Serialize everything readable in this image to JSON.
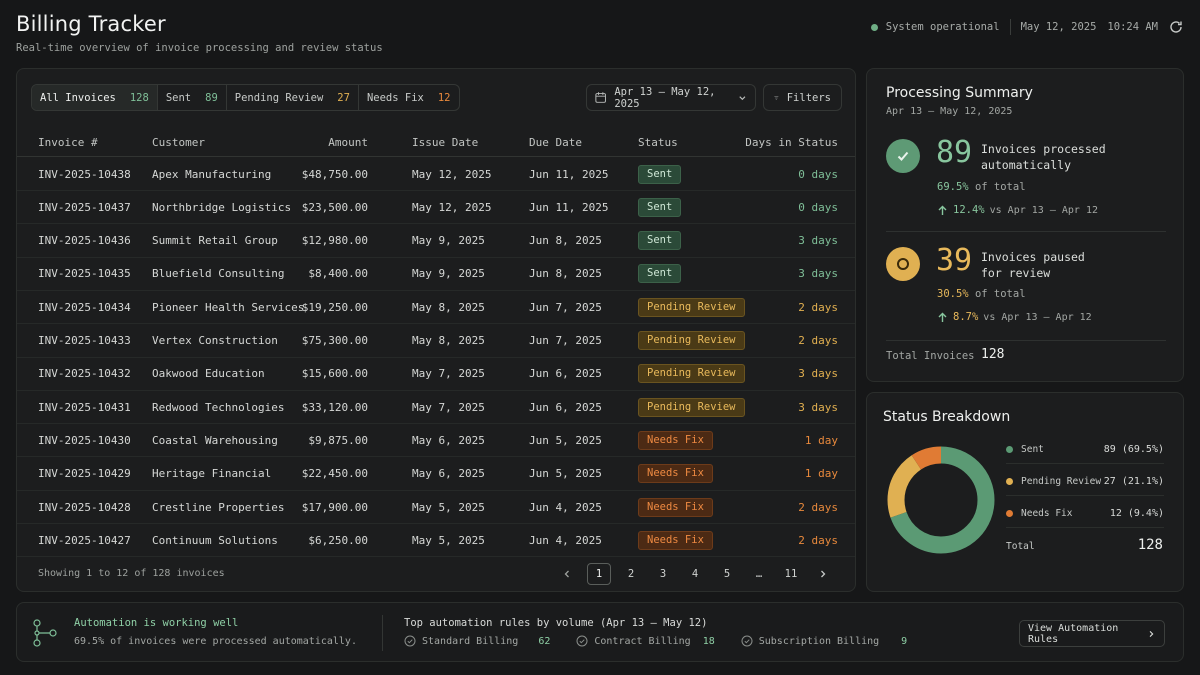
{
  "header": {
    "title": "Billing Tracker",
    "subtitle": "Real-time overview of invoice processing and review status",
    "system_status": "System operational",
    "date": "May 12, 2025",
    "time": "10:24 AM"
  },
  "colors": {
    "sent": "#5b9a74",
    "pending": "#e0b052",
    "fix": "#e07b34",
    "panel": "#1c1d1e",
    "background": "#161718"
  },
  "tabs": [
    {
      "label": "All Invoices",
      "count": "128"
    },
    {
      "label": "Sent",
      "count": "89"
    },
    {
      "label": "Pending Review",
      "count": "27"
    },
    {
      "label": "Needs Fix",
      "count": "12"
    }
  ],
  "toolbar": {
    "date_range": "Apr 13 – May 12, 2025",
    "filters_label": "Filters"
  },
  "table": {
    "columns": [
      "Invoice #",
      "Customer",
      "Amount",
      "Issue Date",
      "Due Date",
      "Status",
      "Days in Status"
    ],
    "rows": [
      {
        "invoice": "INV-2025-10438",
        "customer": "Apex Manufacturing",
        "amount": "$48,750.00",
        "issue": "May 12, 2025",
        "due": "Jun 11, 2025",
        "status": "Sent",
        "kind": "sent",
        "days": "0 days"
      },
      {
        "invoice": "INV-2025-10437",
        "customer": "Northbridge Logistics",
        "amount": "$23,500.00",
        "issue": "May 12, 2025",
        "due": "Jun 11, 2025",
        "status": "Sent",
        "kind": "sent",
        "days": "0 days"
      },
      {
        "invoice": "INV-2025-10436",
        "customer": "Summit Retail Group",
        "amount": "$12,980.00",
        "issue": "May 9, 2025",
        "due": "Jun 8, 2025",
        "status": "Sent",
        "kind": "sent",
        "days": "3 days"
      },
      {
        "invoice": "INV-2025-10435",
        "customer": "Bluefield Consulting",
        "amount": "$8,400.00",
        "issue": "May 9, 2025",
        "due": "Jun 8, 2025",
        "status": "Sent",
        "kind": "sent",
        "days": "3 days"
      },
      {
        "invoice": "INV-2025-10434",
        "customer": "Pioneer Health Services",
        "amount": "$19,250.00",
        "issue": "May 8, 2025",
        "due": "Jun 7, 2025",
        "status": "Pending Review",
        "kind": "pending",
        "days": "2 days"
      },
      {
        "invoice": "INV-2025-10433",
        "customer": "Vertex Construction",
        "amount": "$75,300.00",
        "issue": "May 8, 2025",
        "due": "Jun 7, 2025",
        "status": "Pending Review",
        "kind": "pending",
        "days": "2 days"
      },
      {
        "invoice": "INV-2025-10432",
        "customer": "Oakwood Education",
        "amount": "$15,600.00",
        "issue": "May 7, 2025",
        "due": "Jun 6, 2025",
        "status": "Pending Review",
        "kind": "pending",
        "days": "3 days"
      },
      {
        "invoice": "INV-2025-10431",
        "customer": "Redwood Technologies",
        "amount": "$33,120.00",
        "issue": "May 7, 2025",
        "due": "Jun 6, 2025",
        "status": "Pending Review",
        "kind": "pending",
        "days": "3 days"
      },
      {
        "invoice": "INV-2025-10430",
        "customer": "Coastal Warehousing",
        "amount": "$9,875.00",
        "issue": "May 6, 2025",
        "due": "Jun 5, 2025",
        "status": "Needs Fix",
        "kind": "fix",
        "days": "1 day"
      },
      {
        "invoice": "INV-2025-10429",
        "customer": "Heritage Financial",
        "amount": "$22,450.00",
        "issue": "May 6, 2025",
        "due": "Jun 5, 2025",
        "status": "Needs Fix",
        "kind": "fix",
        "days": "1 day"
      },
      {
        "invoice": "INV-2025-10428",
        "customer": "Crestline Properties",
        "amount": "$17,900.00",
        "issue": "May 5, 2025",
        "due": "Jun 4, 2025",
        "status": "Needs Fix",
        "kind": "fix",
        "days": "2 days"
      },
      {
        "invoice": "INV-2025-10427",
        "customer": "Continuum Solutions",
        "amount": "$6,250.00",
        "issue": "May 5, 2025",
        "due": "Jun 4, 2025",
        "status": "Needs Fix",
        "kind": "fix",
        "days": "2 days"
      }
    ],
    "footer": "Showing 1 to 12 of 128 invoices"
  },
  "pagination": {
    "current": "1",
    "pages": [
      "1",
      "2",
      "3",
      "4",
      "5",
      "…",
      "11"
    ]
  },
  "summary": {
    "title": "Processing Summary",
    "range": "Apr 13 – May 12, 2025",
    "auto": {
      "count": "89",
      "label_line1": "Invoices processed",
      "label_line2": "automatically",
      "pct": "69.5%",
      "pct_suffix": "of total",
      "delta": "12.4%",
      "delta_suffix": "vs Apr 13 – Apr 12"
    },
    "review": {
      "count": "39",
      "label_line1": "Invoices paused",
      "label_line2": "for review",
      "pct": "30.5%",
      "pct_suffix": "of total",
      "delta": "8.7%",
      "delta_suffix": "vs Apr 13 – Apr 12"
    },
    "total_label": "Total Invoices",
    "total_value": "128"
  },
  "breakdown": {
    "title": "Status Breakdown",
    "items": [
      {
        "label": "Sent",
        "value": "89 (69.5%)",
        "count": 89
      },
      {
        "label": "Pending Review",
        "value": "27 (21.1%)",
        "count": 27
      },
      {
        "label": "Needs Fix",
        "value": "12 (9.4%)",
        "count": 12
      }
    ],
    "total_label": "Total",
    "total_value": "128"
  },
  "bottom": {
    "title": "Automation is working well",
    "subtitle": "69.5% of invoices were processed automatically.",
    "rules_title": "Top automation rules by volume (Apr 13 – May 12)",
    "rules": [
      {
        "label": "Standard Billing",
        "count": "62"
      },
      {
        "label": "Contract Billing",
        "count": "18"
      },
      {
        "label": "Subscription Billing",
        "count": "9"
      }
    ],
    "button_label": "View Automation Rules"
  }
}
